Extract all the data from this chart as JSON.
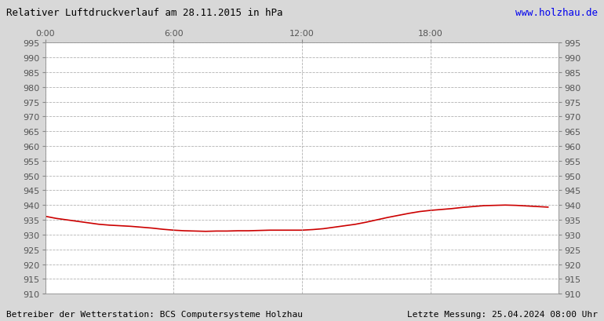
{
  "title": "Relativer Luftdruckverlauf am 28.11.2015 in hPa",
  "url_text": "www.holzhau.de",
  "footer_left": "Betreiber der Wetterstation: BCS Computersysteme Holzhau",
  "footer_right": "Letzte Messung: 25.04.2024 08:00 Uhr",
  "url_color": "#0000ee",
  "title_color": "#000000",
  "footer_color": "#000000",
  "line_color": "#cc0000",
  "background_color": "#d8d8d8",
  "plot_bg_color": "#ffffff",
  "grid_color": "#aaaaaa",
  "ylim": [
    910,
    995
  ],
  "ytick_step": 5,
  "xtick_labels": [
    "0:00",
    "6:00",
    "12:00",
    "18:00"
  ],
  "xtick_positions": [
    0,
    6,
    12,
    18
  ],
  "x_hours": [
    0,
    0.5,
    1,
    1.5,
    2,
    2.5,
    3,
    3.5,
    4,
    4.5,
    5,
    5.5,
    6,
    6.5,
    7,
    7.5,
    8,
    8.5,
    9,
    9.5,
    10,
    10.5,
    11,
    11.5,
    12,
    12.5,
    13,
    13.5,
    14,
    14.5,
    15,
    15.5,
    16,
    16.5,
    17,
    17.5,
    18,
    18.5,
    19,
    19.5,
    20,
    20.5,
    21,
    21.5,
    22,
    22.5,
    23,
    23.5
  ],
  "y_values": [
    936.2,
    935.5,
    935.0,
    934.5,
    934.0,
    933.5,
    933.2,
    933.0,
    932.8,
    932.5,
    932.2,
    931.8,
    931.5,
    931.3,
    931.2,
    931.1,
    931.2,
    931.2,
    931.3,
    931.3,
    931.4,
    931.5,
    931.5,
    931.5,
    931.5,
    931.7,
    932.0,
    932.5,
    933.0,
    933.5,
    934.2,
    935.0,
    935.8,
    936.5,
    937.2,
    937.8,
    938.2,
    938.5,
    938.8,
    939.2,
    939.5,
    939.8,
    939.9,
    940.0,
    939.9,
    939.7,
    939.5,
    939.3
  ],
  "title_fontsize": 9,
  "tick_fontsize": 8,
  "footer_fontsize": 8
}
